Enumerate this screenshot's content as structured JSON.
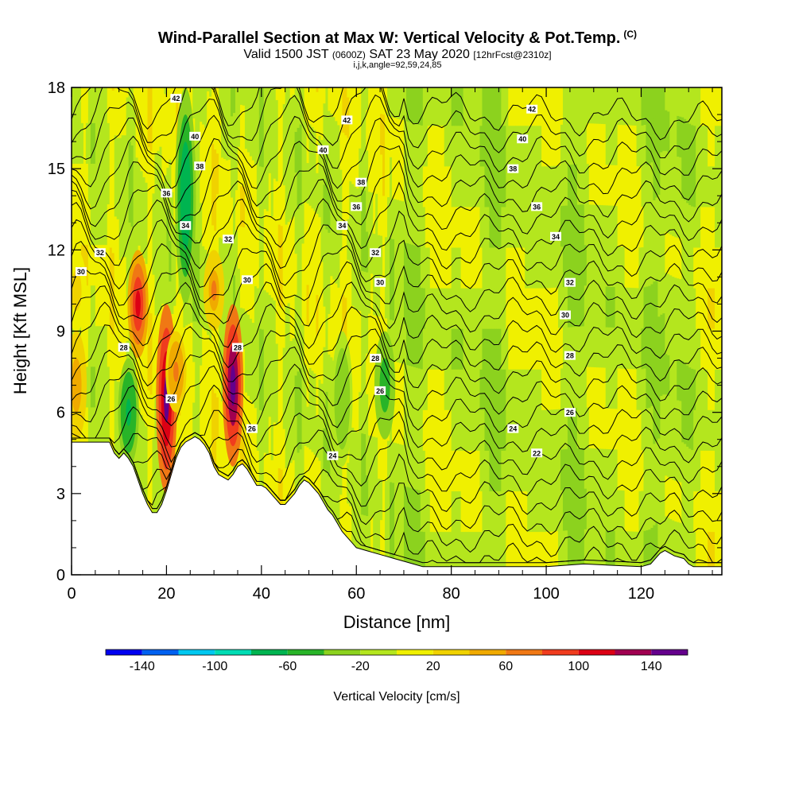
{
  "title": {
    "main": "Wind-Parallel Section at Max W: Vertical Velocity & Pot.Temp.",
    "main_tag": "(C)",
    "valid_prefix": "Valid 1500 JST",
    "valid_utc": "(0600Z)",
    "valid_date": "SAT 23 May 2020",
    "forecast": "[12hrFcst@2310z]",
    "indices": "i,j,k,angle=92,59,24,85"
  },
  "chart_data": {
    "type": "heatmap",
    "xlabel": "Distance [nm]",
    "ylabel": "Height [Kft MSL]",
    "xlim": [
      0,
      137
    ],
    "ylim": [
      0,
      18
    ],
    "x_ticks": [
      "0",
      "20",
      "40",
      "60",
      "80",
      "100",
      "120"
    ],
    "y_ticks": [
      "0",
      "3",
      "6",
      "9",
      "12",
      "15",
      "18"
    ],
    "terrain_kft": [
      [
        0,
        4.9
      ],
      [
        8,
        4.9
      ],
      [
        9,
        4.5
      ],
      [
        10,
        4.3
      ],
      [
        11,
        4.5
      ],
      [
        12,
        4.3
      ],
      [
        13,
        4.0
      ],
      [
        14,
        3.5
      ],
      [
        15,
        3.0
      ],
      [
        16,
        2.6
      ],
      [
        17,
        2.3
      ],
      [
        18,
        2.3
      ],
      [
        19,
        2.6
      ],
      [
        20,
        3.1
      ],
      [
        21,
        3.7
      ],
      [
        22,
        4.3
      ],
      [
        23,
        4.7
      ],
      [
        24,
        4.9
      ],
      [
        25,
        5.0
      ],
      [
        26,
        5.1
      ],
      [
        27,
        5.0
      ],
      [
        28,
        4.8
      ],
      [
        29,
        4.5
      ],
      [
        30,
        4.0
      ],
      [
        31,
        3.7
      ],
      [
        32,
        3.6
      ],
      [
        33,
        3.5
      ],
      [
        34,
        3.7
      ],
      [
        35,
        4.0
      ],
      [
        36,
        4.1
      ],
      [
        37,
        3.9
      ],
      [
        38,
        3.6
      ],
      [
        39,
        3.3
      ],
      [
        40,
        3.3
      ],
      [
        41,
        3.2
      ],
      [
        42,
        3.0
      ],
      [
        43,
        2.8
      ],
      [
        44,
        2.6
      ],
      [
        45,
        2.6
      ],
      [
        46,
        2.8
      ],
      [
        47,
        3.0
      ],
      [
        48,
        3.3
      ],
      [
        49,
        3.5
      ],
      [
        50,
        3.4
      ],
      [
        51,
        3.2
      ],
      [
        52,
        3.0
      ],
      [
        53,
        2.7
      ],
      [
        54,
        2.4
      ],
      [
        55,
        2.2
      ],
      [
        56,
        1.9
      ],
      [
        57,
        1.6
      ],
      [
        58,
        1.4
      ],
      [
        59,
        1.2
      ],
      [
        60,
        1.0
      ],
      [
        62,
        0.9
      ],
      [
        64,
        0.8
      ],
      [
        66,
        0.7
      ],
      [
        68,
        0.6
      ],
      [
        70,
        0.5
      ],
      [
        72,
        0.4
      ],
      [
        74,
        0.3
      ],
      [
        80,
        0.3
      ],
      [
        100,
        0.3
      ],
      [
        108,
        0.4
      ],
      [
        120,
        0.3
      ],
      [
        122,
        0.4
      ],
      [
        123,
        0.6
      ],
      [
        124,
        0.8
      ],
      [
        125,
        0.9
      ],
      [
        126,
        0.8
      ],
      [
        127,
        0.7
      ],
      [
        129,
        0.6
      ],
      [
        130,
        0.4
      ],
      [
        131,
        0.3
      ],
      [
        137,
        0.3
      ]
    ],
    "colorbar": {
      "label": "Vertical Velocity [cm/s]",
      "ticks": [
        "-140",
        "-100",
        "-60",
        "-20",
        "20",
        "60",
        "100",
        "140"
      ],
      "levels": [
        -160,
        -140,
        -120,
        -100,
        -80,
        -60,
        -40,
        -20,
        0,
        20,
        40,
        60,
        80,
        100,
        120,
        140,
        160
      ],
      "colors": [
        "#0000f0",
        "#0060f0",
        "#00c8f0",
        "#00dcb4",
        "#00b450",
        "#28b428",
        "#8cd21e",
        "#b4e61e",
        "#f0f000",
        "#f0d200",
        "#f0aa00",
        "#f07814",
        "#f03c1e",
        "#dc0014",
        "#a00050",
        "#64008c"
      ]
    },
    "velocity_cells": [
      {
        "x": 1,
        "kft_from": 9,
        "kft_to": 12,
        "value": 30
      },
      {
        "x": 1,
        "kft_from": 5,
        "kft_to": 9,
        "value": 50
      },
      {
        "x": 14,
        "kft_from": 8,
        "kft_to": 12,
        "value": 100
      },
      {
        "x": 20,
        "kft_from": 3,
        "kft_to": 10,
        "value": 145
      },
      {
        "x": 22,
        "kft_from": 6,
        "kft_to": 9,
        "value": 70
      },
      {
        "x": 34,
        "kft_from": 4,
        "kft_to": 10,
        "value": 150
      },
      {
        "x": 30,
        "kft_from": 9,
        "kft_to": 12,
        "value": 60
      },
      {
        "x": 12,
        "kft_from": 4,
        "kft_to": 8,
        "value": -70
      },
      {
        "x": 24,
        "kft_from": 10,
        "kft_to": 18,
        "value": -80
      },
      {
        "x": 57,
        "kft_from": 4,
        "kft_to": 9,
        "value": -40
      },
      {
        "x": 66,
        "kft_from": 5,
        "kft_to": 9,
        "value": -60
      }
    ],
    "theta_contours": {
      "levels": [
        "22",
        "24",
        "26",
        "28",
        "30",
        "32",
        "34",
        "36",
        "38",
        "40",
        "42"
      ]
    },
    "contour_labels": [
      {
        "text": "42",
        "x": 22,
        "kft": 17.6
      },
      {
        "text": "42",
        "x": 58,
        "kft": 16.8
      },
      {
        "text": "42",
        "x": 97,
        "kft": 17.2
      },
      {
        "text": "40",
        "x": 26,
        "kft": 16.2
      },
      {
        "text": "40",
        "x": 53,
        "kft": 15.7
      },
      {
        "text": "40",
        "x": 95,
        "kft": 16.1
      },
      {
        "text": "38",
        "x": 27,
        "kft": 15.1
      },
      {
        "text": "38",
        "x": 61,
        "kft": 14.5
      },
      {
        "text": "38",
        "x": 93,
        "kft": 15.0
      },
      {
        "text": "36",
        "x": 20,
        "kft": 14.1
      },
      {
        "text": "36",
        "x": 60,
        "kft": 13.6
      },
      {
        "text": "36",
        "x": 98,
        "kft": 13.6
      },
      {
        "text": "34",
        "x": 24,
        "kft": 12.9
      },
      {
        "text": "34",
        "x": 57,
        "kft": 12.9
      },
      {
        "text": "34",
        "x": 102,
        "kft": 12.5
      },
      {
        "text": "32",
        "x": 6,
        "kft": 11.9
      },
      {
        "text": "32",
        "x": 33,
        "kft": 12.4
      },
      {
        "text": "32",
        "x": 64,
        "kft": 11.9
      },
      {
        "text": "32",
        "x": 105,
        "kft": 10.8
      },
      {
        "text": "30",
        "x": 2,
        "kft": 11.2
      },
      {
        "text": "30",
        "x": 37,
        "kft": 10.9
      },
      {
        "text": "30",
        "x": 65,
        "kft": 10.8
      },
      {
        "text": "30",
        "x": 104,
        "kft": 9.6
      },
      {
        "text": "28",
        "x": 11,
        "kft": 8.4
      },
      {
        "text": "28",
        "x": 35,
        "kft": 8.4
      },
      {
        "text": "28",
        "x": 64,
        "kft": 8.0
      },
      {
        "text": "28",
        "x": 105,
        "kft": 8.1
      },
      {
        "text": "26",
        "x": 21,
        "kft": 6.5
      },
      {
        "text": "26",
        "x": 65,
        "kft": 6.8
      },
      {
        "text": "26",
        "x": 105,
        "kft": 6.0
      },
      {
        "text": "26",
        "x": 38,
        "kft": 5.4
      },
      {
        "text": "24",
        "x": 55,
        "kft": 4.4
      },
      {
        "text": "24",
        "x": 93,
        "kft": 5.4
      },
      {
        "text": "22",
        "x": 98,
        "kft": 4.5
      }
    ]
  }
}
